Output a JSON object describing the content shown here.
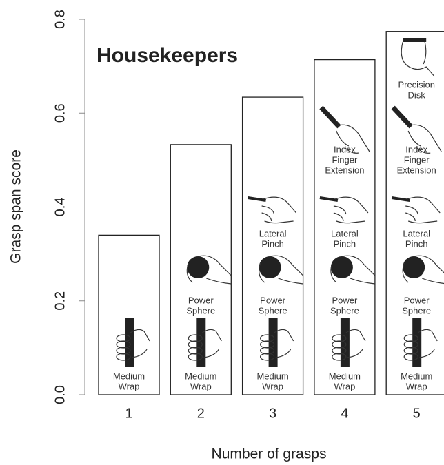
{
  "chart_data": {
    "type": "bar",
    "title": "Housekeepers",
    "x_label": "Number of grasps",
    "y_label": "Grasp span score",
    "categories": [
      "1",
      "2",
      "3",
      "4",
      "5"
    ],
    "values": [
      0.34,
      0.533,
      0.634,
      0.714,
      0.774
    ],
    "color": "#ffffff",
    "ylim": [
      0,
      0.8
    ],
    "yticks": [
      {
        "value": 0,
        "label": "0.0"
      },
      0.2,
      0.4,
      0.6,
      0.8
    ],
    "grid": false,
    "grasps": [
      [
        [
          "Medium",
          "Wrap"
        ]
      ],
      [
        [
          "Medium",
          "Wrap"
        ],
        [
          "Power",
          "Sphere"
        ]
      ],
      [
        [
          "Medium",
          "Wrap"
        ],
        [
          "Power",
          "Sphere"
        ],
        [
          "Lateral",
          "Pinch"
        ]
      ],
      [
        [
          "Medium",
          "Wrap"
        ],
        [
          "Power",
          "Sphere"
        ],
        [
          "Lateral",
          "Pinch"
        ],
        [
          "Index",
          "Finger",
          "Extension"
        ]
      ],
      [
        [
          "Medium",
          "Wrap"
        ],
        [
          "Power",
          "Sphere"
        ],
        [
          "Lateral",
          "Pinch"
        ],
        [
          "Index",
          "Finger",
          "Extension"
        ],
        [
          "Precision",
          "Disk"
        ]
      ]
    ]
  }
}
